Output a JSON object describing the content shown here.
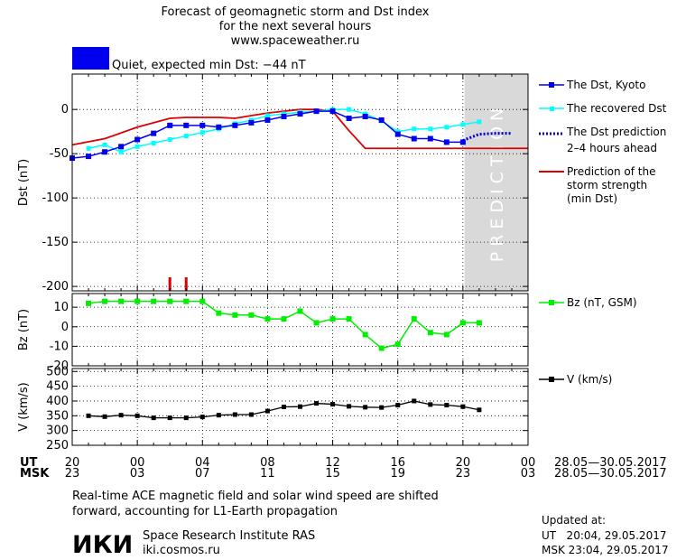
{
  "header": {
    "title_line1": "Forecast of geomagnetic storm and Dst index",
    "title_line2": "for the next several hours",
    "url": "www.spaceweather.ru"
  },
  "status": {
    "label": "Quiet, expected min Dst: −44 nT",
    "color": "#0000ee"
  },
  "colors": {
    "dst_kyoto": "#0000ee",
    "dst_recovered": "#00ffff",
    "dst_prediction": "#0000cc",
    "storm_strength": "#dd0000",
    "bz": "#00ee00",
    "v": "#000000",
    "prediction_band": "#d9d9d9"
  },
  "legend": {
    "dst_kyoto": "The Dst, Kyoto",
    "dst_recovered": "The recovered Dst",
    "dst_prediction_1": "The Dst prediction",
    "dst_prediction_2": "2–4 hours ahead",
    "storm_1": "Prediction of the",
    "storm_2": "storm strength",
    "storm_3": "(min Dst)",
    "bz": "Bz (nT, GSM)",
    "v": "V (km/s)"
  },
  "prediction_label": "PREDICTION",
  "time_axis": {
    "ut_label": "UT",
    "msk_label": "MSK",
    "ut_ticks": [
      "20",
      "00",
      "04",
      "08",
      "12",
      "16",
      "20",
      "00"
    ],
    "msk_ticks": [
      "23",
      "03",
      "07",
      "11",
      "15",
      "19",
      "23",
      "03"
    ],
    "date_range_ut": "28.05—30.05.2017",
    "date_range_msk": "28.05—30.05.2017",
    "x_range_hours": [
      0,
      28
    ],
    "tick_hours": [
      0,
      4,
      8,
      12,
      16,
      20,
      24,
      28
    ],
    "prediction_start_hour": 24.1
  },
  "footer": {
    "note_line1": "Real-time ACE magnetic field and solar wind speed are shifted",
    "note_line2": "forward, accounting for L1-Earth propagation",
    "institute": "Space Research Institute RAS",
    "website": "iki.cosmos.ru",
    "logo_text": "ИКИ",
    "updated_label": "Updated at:",
    "updated_ut": "UT   20:04, 29.05.2017",
    "updated_msk": "MSK 23:04, 29.05.2017"
  },
  "chart_data": [
    {
      "type": "line",
      "panel": "dst",
      "ylabel": "Dst (nT)",
      "ylim": [
        -205,
        40
      ],
      "yticks": [
        0,
        -50,
        -100,
        -150,
        -200
      ],
      "series": [
        {
          "name": "The Dst, Kyoto",
          "x": [
            0,
            1,
            2,
            3,
            4,
            5,
            6,
            7,
            8,
            9,
            10,
            11,
            12,
            13,
            14,
            15,
            16,
            17,
            18,
            19,
            20,
            21,
            22,
            23,
            24
          ],
          "y": [
            -55,
            -53,
            -48,
            -42,
            -34,
            -27,
            -18,
            -18,
            -18,
            -20,
            -18,
            -15,
            -12,
            -8,
            -5,
            -2,
            -2,
            -10,
            -8,
            -12,
            -28,
            -33,
            -33,
            -37,
            -37
          ]
        },
        {
          "name": "The recovered Dst",
          "x": [
            1,
            2,
            3,
            4,
            5,
            6,
            7,
            8,
            9,
            10,
            11,
            12,
            13,
            14,
            15,
            16,
            17,
            18,
            19,
            20,
            21,
            22,
            23,
            24,
            25
          ],
          "y": [
            -44,
            -40,
            -48,
            -42,
            -38,
            -34,
            -30,
            -26,
            -22,
            -16,
            -12,
            -7,
            -5,
            -3,
            -2,
            0,
            0,
            -5,
            -13,
            -25,
            -22,
            -22,
            -20,
            -17,
            -14
          ]
        },
        {
          "name": "The Dst prediction 2–4 hours ahead",
          "x": [
            24,
            25,
            26,
            27
          ],
          "y": [
            -35,
            -28,
            -27,
            -27
          ]
        },
        {
          "name": "Prediction of the storm strength (min Dst)",
          "x": [
            0,
            2,
            4,
            6,
            7,
            8,
            9,
            10,
            11,
            12,
            13,
            14,
            15,
            16,
            17,
            18,
            19,
            20,
            28
          ],
          "y": [
            -40,
            -33,
            -20,
            -10,
            -9,
            -9,
            -9,
            -10,
            -7,
            -4,
            -2,
            0,
            0,
            -2,
            -24,
            -44,
            -44,
            -44,
            -44
          ]
        }
      ],
      "storm_marks_x": [
        6,
        7
      ]
    },
    {
      "type": "line",
      "panel": "bz",
      "ylabel": "Bz (nT)",
      "ylim": [
        -20,
        17
      ],
      "yticks": [
        10,
        0,
        -10,
        -20
      ],
      "series": [
        {
          "name": "Bz (nT, GSM)",
          "x": [
            1,
            2,
            3,
            4,
            5,
            6,
            7,
            8,
            9,
            10,
            11,
            12,
            13,
            14,
            15,
            16,
            17,
            18,
            19,
            20,
            21,
            22,
            23,
            24,
            25
          ],
          "y": [
            12,
            13,
            13,
            13,
            13,
            13,
            13,
            13,
            7,
            6,
            6,
            4,
            4,
            8,
            2,
            4,
            4,
            -4,
            -11,
            -9,
            4,
            -3,
            -4,
            2,
            2
          ]
        }
      ]
    },
    {
      "type": "line",
      "panel": "v",
      "ylabel": "V (km/s)",
      "ylim": [
        250,
        510
      ],
      "yticks": [
        500,
        450,
        400,
        350,
        300,
        250
      ],
      "series": [
        {
          "name": "V (km/s)",
          "x": [
            1,
            2,
            3,
            4,
            5,
            6,
            7,
            8,
            9,
            10,
            11,
            12,
            13,
            14,
            15,
            16,
            17,
            18,
            19,
            20,
            21,
            22,
            23,
            24,
            25
          ],
          "y": [
            350,
            347,
            352,
            350,
            343,
            343,
            343,
            346,
            352,
            354,
            354,
            366,
            380,
            381,
            392,
            389,
            382,
            379,
            378,
            386,
            400,
            388,
            386,
            381,
            370
          ]
        }
      ]
    }
  ]
}
